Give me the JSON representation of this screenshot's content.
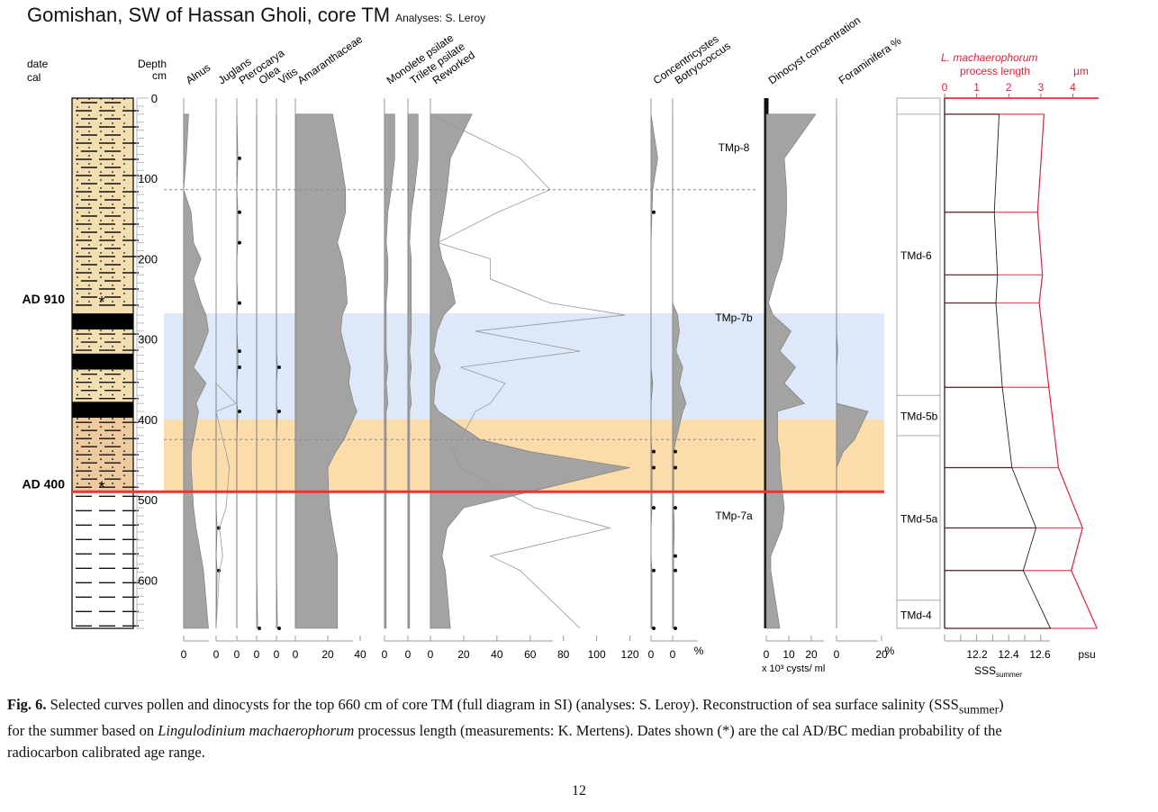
{
  "header": {
    "title": "Gomishan, SW of Hassan Gholi, core TM",
    "subtitle": "Analyses: S. Leroy",
    "date_label_1": "date",
    "date_label_2": "cal",
    "depth_label_1": "Depth",
    "depth_label_2": "cm"
  },
  "chart_data": {
    "type": "area",
    "title": "Gomishan, SW of Hassan Gholi, core TM",
    "ylabel": "Depth (cm)",
    "ylim": [
      0,
      660
    ],
    "yticks": [
      0,
      100,
      200,
      300,
      400,
      500,
      600
    ],
    "dates": [
      {
        "label": "AD 910",
        "depth": 250
      },
      {
        "label": "AD 400",
        "depth": 480
      }
    ],
    "lithology": [
      {
        "from": 0,
        "to": 268,
        "type": "sandy silt (dots and dashes)",
        "color": "#f2deb0"
      },
      {
        "from": 268,
        "to": 288,
        "type": "black layer",
        "color": "#000000"
      },
      {
        "from": 288,
        "to": 318,
        "type": "sandy silt",
        "color": "#f2deb0"
      },
      {
        "from": 318,
        "to": 338,
        "type": "black layer",
        "color": "#000000"
      },
      {
        "from": 338,
        "to": 378,
        "type": "sandy silt",
        "color": "#f2deb0"
      },
      {
        "from": 378,
        "to": 398,
        "type": "black layer",
        "color": "#000000"
      },
      {
        "from": 398,
        "to": 490,
        "type": "sand with silt",
        "color": "#eecaa0"
      },
      {
        "from": 490,
        "to": 660,
        "type": "silt (dashes)",
        "color": "#ffffff"
      }
    ],
    "bands": [
      {
        "from": 268,
        "to": 400,
        "color": "#dde9f8"
      },
      {
        "from": 400,
        "to": 490,
        "color": "#fcdcaa"
      }
    ],
    "red_line_depth": 490,
    "samples": [
      20,
      75,
      114,
      142,
      180,
      200,
      225,
      255,
      270,
      290,
      315,
      335,
      355,
      380,
      390,
      425,
      440,
      460,
      510,
      535,
      570,
      588,
      660
    ],
    "series": [
      {
        "name": "Alnus",
        "unit": "%",
        "xmax": 20,
        "ticks": [
          "0"
        ],
        "fill": true,
        "values": [
          2,
          1,
          0,
          3,
          4,
          7,
          4,
          7,
          9,
          10,
          7,
          4,
          9,
          5,
          6,
          4,
          3,
          3,
          4,
          5,
          7,
          8,
          10
        ]
      },
      {
        "name": "Juglans",
        "unit": "%",
        "xmax": 6,
        "ticks": [
          "0"
        ],
        "fill": false,
        "exag": true,
        "values": [
          0,
          0,
          0,
          0,
          0,
          0,
          0,
          0,
          0,
          0,
          0,
          0,
          0,
          0,
          0,
          0,
          0,
          0,
          0,
          0.3,
          0,
          0.3,
          0
        ]
      },
      {
        "name": "Pterocarya",
        "unit": "%",
        "xmax": 6,
        "ticks": [
          "0"
        ],
        "fill": false,
        "values": [
          0,
          0.3,
          0,
          0.3,
          0.3,
          0,
          0,
          0.3,
          0,
          0,
          0.3,
          0.3,
          0,
          0,
          0.3,
          0,
          0,
          0,
          0,
          0,
          0,
          0,
          0
        ]
      },
      {
        "name": "Olea",
        "unit": "%",
        "xmax": 6,
        "ticks": [
          "0"
        ],
        "fill": false,
        "exag": true,
        "values": [
          0,
          0,
          0,
          0,
          0,
          0,
          0,
          0,
          0,
          0,
          0,
          0,
          0,
          0,
          0,
          0,
          0,
          0,
          0,
          0,
          0,
          0,
          0.3
        ]
      },
      {
        "name": "Vitis",
        "unit": "%",
        "xmax": 6,
        "ticks": [
          "0"
        ],
        "fill": false,
        "values": [
          0,
          0,
          0,
          0,
          0,
          0,
          0,
          0,
          0,
          0,
          0,
          0.3,
          0,
          0,
          0.3,
          0,
          0,
          0,
          0,
          0,
          0,
          0,
          0.3
        ]
      },
      {
        "name": "Amaranthaceae",
        "unit": "%",
        "xmax": 50,
        "ticks": [
          "0",
          "20",
          "40"
        ],
        "fill": true,
        "values": [
          23,
          28,
          31,
          31,
          26,
          29,
          31,
          32,
          29,
          28,
          31,
          34,
          33,
          36,
          38,
          30,
          25,
          20,
          21,
          23,
          26,
          26,
          26
        ]
      },
      {
        "name": "Monolete psilate",
        "unit": "%",
        "xmax": 8,
        "ticks": [
          "0"
        ],
        "fill": true,
        "values": [
          3,
          3,
          2,
          1,
          0.5,
          1,
          1,
          0.5,
          0.5,
          0.5,
          0.5,
          1,
          0.5,
          1,
          0.5,
          0.5,
          0.5,
          0.5,
          0.5,
          0.5,
          0.5,
          0.5,
          0.5
        ]
      },
      {
        "name": "Trilete psilate",
        "unit": "%",
        "xmax": 8,
        "ticks": [
          "0"
        ],
        "fill": true,
        "values": [
          3,
          3,
          2,
          1,
          0.5,
          1,
          1,
          1,
          1,
          1,
          0.5,
          1,
          0.5,
          1,
          0.5,
          0.5,
          0.5,
          0.5,
          0.5,
          0.5,
          0.5,
          0.5,
          0.5
        ]
      },
      {
        "name": "Reworked",
        "unit": "%",
        "xmax": 130,
        "ticks": [
          "0",
          "20",
          "40",
          "60",
          "80",
          "100",
          "120"
        ],
        "fill": true,
        "values": [
          25,
          12,
          10,
          8,
          5,
          7,
          12,
          15,
          8,
          4,
          2,
          6,
          3,
          2,
          5,
          30,
          60,
          120,
          20,
          10,
          7,
          9,
          12
        ]
      },
      {
        "name": "Concentricystes",
        "unit": "%",
        "xmax": 8,
        "ticks": [
          "0"
        ],
        "fill": true,
        "values": [
          0,
          2,
          0.5,
          0.3,
          0,
          0,
          0,
          0,
          0,
          0,
          0,
          0,
          0.5,
          0,
          0,
          0,
          0.3,
          0.3,
          0.3,
          0,
          0,
          0.3,
          0.3
        ]
      },
      {
        "name": "Botryococcus",
        "unit": "%",
        "xmax": 8,
        "ticks": [
          "0"
        ],
        "fill": true,
        "values": [
          0,
          0,
          0,
          0,
          0,
          0,
          0,
          0,
          1.5,
          2,
          1,
          3,
          2,
          4,
          3,
          1,
          0.3,
          0.3,
          0.3,
          0.5,
          0.3,
          0.3,
          0.3
        ]
      },
      {
        "name": "Dinocyst concentration",
        "unit": "x 10³ cysts/ ml",
        "xmax": 30,
        "ticks": [
          "0",
          "10",
          "20"
        ],
        "fill": true,
        "values": [
          22,
          8,
          9,
          9,
          8,
          7,
          4,
          1,
          3,
          11,
          6,
          13,
          8,
          17,
          5,
          5,
          6,
          6,
          8,
          7,
          2,
          2,
          6
        ]
      },
      {
        "name": "Foraminifera %",
        "unit": "%",
        "xmax": 30,
        "ticks": [
          "0",
          "20"
        ],
        "fill": true,
        "values": [
          0,
          0,
          0,
          0,
          0,
          0,
          0,
          0,
          0,
          0,
          0.5,
          0,
          0,
          0,
          14,
          8,
          3,
          0,
          0,
          0,
          0,
          0,
          0
        ]
      }
    ],
    "exaggeration_lines": [
      {
        "name": "Juglans x10",
        "values": [
          0,
          0,
          0,
          0,
          0,
          0,
          0,
          0,
          0,
          0,
          0,
          0,
          0,
          6,
          0,
          2,
          3,
          4,
          3,
          1,
          2,
          1,
          0
        ]
      },
      {
        "name": "Reworked x5",
        "values": [
          0,
          60,
          80,
          45,
          5,
          40,
          40,
          80,
          130,
          30,
          100,
          20,
          50,
          40,
          30,
          20,
          15,
          20,
          70,
          120,
          40,
          60,
          100
        ]
      }
    ],
    "pollen_zones": [
      {
        "label": "TMp-8",
        "from": 0,
        "to": 114
      },
      {
        "label": "TMp-7b",
        "from": 114,
        "to": 425
      },
      {
        "label": "TMp-7a",
        "from": 425,
        "to": 660
      }
    ],
    "dinocyst_zones": [
      {
        "label": "TMd-6",
        "from": 20,
        "to": 370
      },
      {
        "label": "TMd-5b",
        "from": 370,
        "to": 420
      },
      {
        "label": "TMd-5a",
        "from": 420,
        "to": 625
      },
      {
        "label": "TMd-4",
        "from": 625,
        "to": 660
      }
    ],
    "process_length": {
      "title_italic": "L. machaerophorum",
      "title": "process length",
      "unit": "µm",
      "xlim": [
        0,
        4.8
      ],
      "xticks": [
        "0",
        "1",
        "2",
        "3",
        "4"
      ],
      "depths": [
        20,
        142,
        220,
        255,
        360,
        460,
        535,
        588,
        660
      ],
      "mean": [
        1.7,
        1.55,
        1.65,
        1.6,
        1.8,
        2.1,
        2.85,
        2.45,
        3.3
      ],
      "max": [
        3.1,
        2.9,
        3.05,
        2.95,
        3.25,
        3.55,
        4.3,
        3.95,
        4.75
      ]
    },
    "sss_axis": {
      "label": "SSS",
      "label_sub": "summer",
      "unit": "psu",
      "xticks": [
        "12.2",
        "12.4",
        "12.6"
      ]
    }
  },
  "caption": {
    "fig_label": "Fig. 6.",
    "text_1": "Selected curves pollen and dinocysts for the top 660 cm of core TM (full diagram in SI) (analyses: S. Leroy). Reconstruction of sea surface salinity (SSS",
    "sub": "summer",
    "text_2": ")",
    "text_3": "for the summer based on ",
    "italic": "Lingulodinium machaerophorum",
    "text_4": " processus length (measurements: K. Mertens). Dates shown (*) are the cal AD/BC median probability of the",
    "text_5": "radiocarbon calibrated age range."
  },
  "page_number": "12"
}
